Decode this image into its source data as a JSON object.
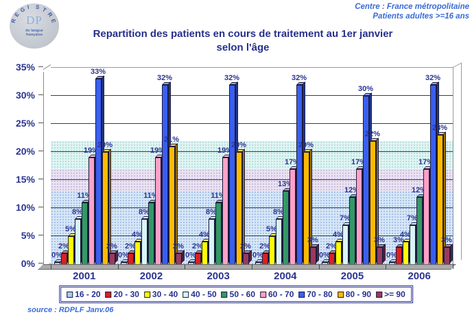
{
  "logo": {
    "arc_text": "REGISTRE",
    "center_text": "DP",
    "sub_text": "de langue française"
  },
  "header": {
    "line1": "Centre : France métropolitaine",
    "line2": "Patients adultes >=16 ans"
  },
  "title": {
    "line1": "Repartition des patients en cours de traitement au 1er janvier",
    "line2": "selon l'âge"
  },
  "source": "source : RDPLF  Janv.06",
  "chart_data": {
    "type": "bar",
    "title": "Repartition des patients en cours de traitement au 1er janvier selon l'âge",
    "categories": [
      "2001",
      "2002",
      "2003",
      "2004",
      "2005",
      "2006"
    ],
    "series": [
      {
        "name": "16 - 20",
        "color": "#ABC9EC",
        "values": [
          0,
          0,
          0,
          0,
          0,
          0
        ]
      },
      {
        "name": "20 - 30",
        "color": "#D92121",
        "values": [
          2,
          2,
          2,
          2,
          2,
          3
        ]
      },
      {
        "name": "30 - 40",
        "color": "#FFFF00",
        "values": [
          5,
          4,
          4,
          5,
          4,
          4
        ]
      },
      {
        "name": "40 - 50",
        "color": "#D9F5F5",
        "values": [
          8,
          8,
          8,
          8,
          7,
          7
        ]
      },
      {
        "name": "50 - 60",
        "color": "#339966",
        "values": [
          11,
          11,
          11,
          13,
          12,
          12
        ]
      },
      {
        "name": "60 - 70",
        "color": "#FFA1C8",
        "values": [
          19,
          19,
          19,
          17,
          17,
          17
        ]
      },
      {
        "name": "70 - 80",
        "color": "#3A5FEF",
        "values": [
          33,
          32,
          32,
          32,
          30,
          32
        ]
      },
      {
        "name": "80 - 90",
        "color": "#FFBB00",
        "values": [
          20,
          21,
          20,
          20,
          22,
          23
        ]
      },
      {
        "name": ">= 90",
        "color": "#993A5E",
        "values": [
          2,
          2,
          2,
          3,
          3,
          3
        ]
      }
    ],
    "value_suffix": "%",
    "xlabel": "",
    "ylabel": "",
    "ylim": [
      0,
      35
    ],
    "ytick_step": 5,
    "yticks": [
      "0%",
      "5%",
      "10%",
      "15%",
      "20%",
      "25%",
      "30%",
      "35%"
    ],
    "grid": true,
    "data_labels": true,
    "legend_position": "bottom",
    "bands": [
      {
        "from": 0,
        "to": 13,
        "color": "#D7E7F8",
        "dot": "rgba(80,130,200,0.38)"
      },
      {
        "from": 13,
        "to": 17,
        "color": "#EBE4F3",
        "dot": "rgba(150,120,190,0.38)"
      },
      {
        "from": 17,
        "to": 22,
        "color": "#E1F5F3",
        "dot": "rgba(100,185,185,0.38)"
      }
    ]
  },
  "colors": {
    "title_text": "#26308C",
    "header_text": "#3A6BD6",
    "axis_text": "#2B3490",
    "value_label_text": "#2B3490",
    "grid": "#3A3A3A",
    "bar_border": "#1B1B3C"
  }
}
